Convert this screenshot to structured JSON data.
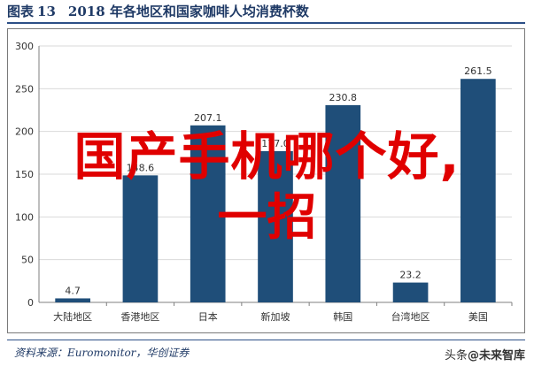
{
  "header": {
    "figure_label": "图表",
    "figure_number": "13",
    "title": "2018 年各地区和国家咖啡人均消费杯数"
  },
  "overlay": {
    "line1": "国产手机哪个好,",
    "line2": "一招"
  },
  "source": "资料来源：Euromonitor，华创证券",
  "watermark": {
    "prefix": "头条",
    "brand": "@未来智库"
  },
  "colors": {
    "bar": "#1f4e79",
    "axis": "#7f7f7f",
    "grid": "#d9d9d9",
    "text": "#333333",
    "overlay": "#e00000"
  },
  "chart_data": {
    "type": "bar",
    "title": "2018 年各地区和国家咖啡人均消费杯数",
    "categories": [
      "大陆地区",
      "香港地区",
      "日本",
      "新加坡",
      "韩国",
      "台湾地区",
      "美国"
    ],
    "values": [
      4.7,
      148.6,
      207.1,
      177.0,
      230.8,
      23.2,
      261.5
    ],
    "value_labels": [
      "4.7",
      "148.6",
      "207.1",
      "177.0",
      "230.8",
      "23.2",
      "261.5"
    ],
    "ylim": [
      0,
      300
    ],
    "yticks": [
      0,
      50,
      100,
      150,
      200,
      250,
      300
    ],
    "grid": true,
    "legend": "none"
  }
}
